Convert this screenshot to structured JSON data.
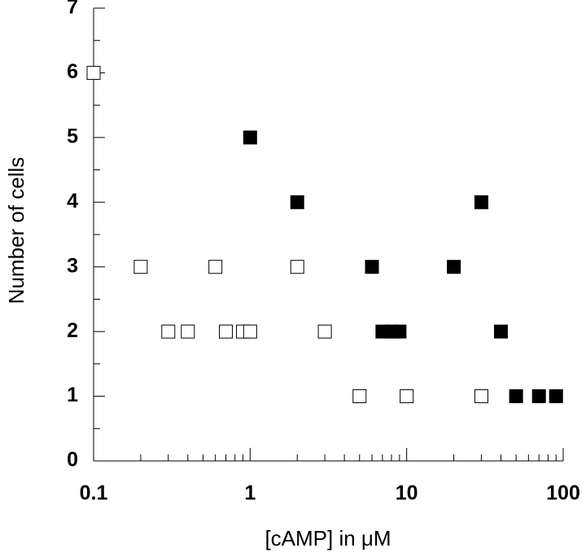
{
  "chart_data": {
    "type": "scatter",
    "x_label": "[cAMP] in μM",
    "y_label": "Number of cells",
    "xscale": "log",
    "xlim": [
      0.1,
      100
    ],
    "xticks": [
      0.1,
      1,
      10,
      100
    ],
    "ylim": [
      0,
      7
    ],
    "yticks": [
      0,
      1,
      2,
      3,
      4,
      5,
      6,
      7
    ],
    "series": [
      {
        "color": "#000000",
        "filled": false,
        "x": [
          0.1,
          0.2,
          0.6,
          2,
          0.3,
          0.4,
          0.7,
          0.9,
          1,
          3,
          5,
          10,
          30
        ],
        "values": [
          6,
          3,
          3,
          3,
          2,
          2,
          2,
          2,
          2,
          2,
          1,
          1,
          1
        ]
      },
      {
        "color": "#000000",
        "filled": true,
        "x": [
          1,
          2,
          30,
          6,
          20,
          7,
          8,
          9,
          40,
          50,
          70,
          90
        ],
        "values": [
          5,
          4,
          4,
          3,
          3,
          2,
          2,
          2,
          2,
          1,
          1,
          1
        ]
      }
    ]
  }
}
